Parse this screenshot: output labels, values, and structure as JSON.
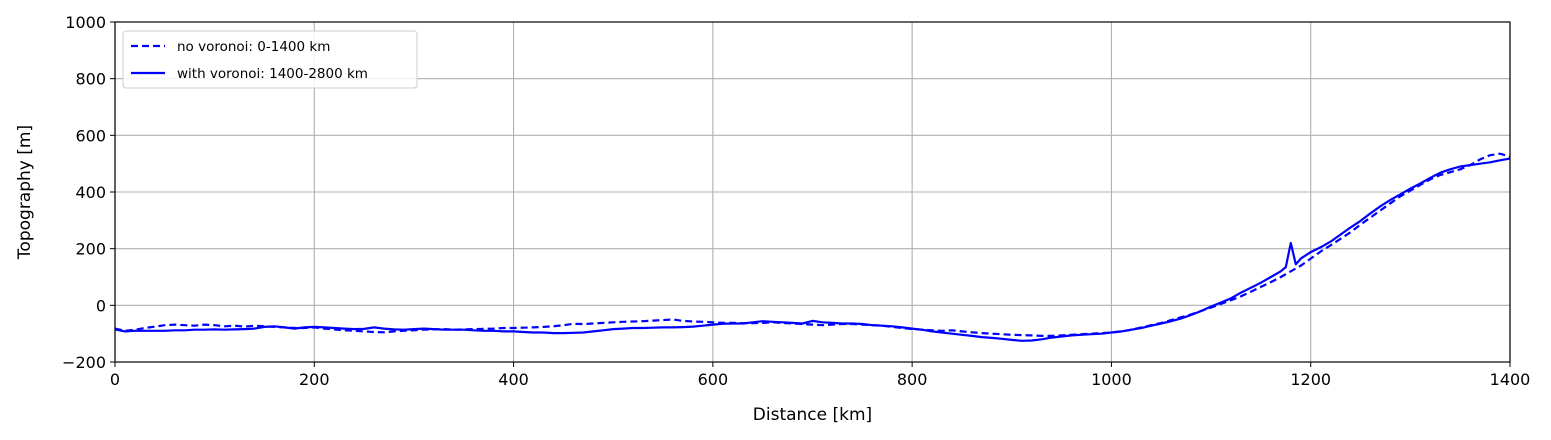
{
  "chart_data": {
    "type": "line",
    "xlabel": "Distance [km]",
    "ylabel": "Topography [m]",
    "xlim": [
      0,
      1400
    ],
    "ylim": [
      -200,
      1000
    ],
    "xticks": [
      0,
      200,
      400,
      600,
      800,
      1000,
      1200,
      1400
    ],
    "yticks": [
      -200,
      0,
      200,
      400,
      600,
      800,
      1000
    ],
    "grid": true,
    "legend_position": "top-left",
    "series": [
      {
        "name": "no voronoi: 0-1400 km",
        "style": "dashed",
        "color": "#0000ff",
        "x": [
          0,
          10,
          20,
          30,
          40,
          50,
          60,
          70,
          80,
          90,
          100,
          110,
          120,
          130,
          140,
          150,
          160,
          170,
          180,
          190,
          200,
          210,
          220,
          230,
          240,
          250,
          260,
          270,
          280,
          290,
          300,
          310,
          320,
          330,
          340,
          350,
          360,
          370,
          380,
          390,
          400,
          410,
          420,
          430,
          440,
          450,
          460,
          470,
          480,
          490,
          500,
          510,
          520,
          530,
          540,
          550,
          560,
          570,
          580,
          590,
          600,
          610,
          620,
          630,
          640,
          650,
          660,
          670,
          680,
          690,
          700,
          710,
          720,
          730,
          740,
          750,
          760,
          770,
          780,
          790,
          800,
          810,
          820,
          830,
          840,
          850,
          860,
          870,
          880,
          890,
          900,
          910,
          920,
          930,
          940,
          950,
          960,
          970,
          980,
          990,
          1000,
          1010,
          1020,
          1030,
          1040,
          1050,
          1060,
          1070,
          1080,
          1090,
          1100,
          1110,
          1120,
          1130,
          1140,
          1150,
          1160,
          1170,
          1180,
          1190,
          1200,
          1210,
          1220,
          1230,
          1240,
          1250,
          1260,
          1270,
          1280,
          1290,
          1300,
          1310,
          1320,
          1330,
          1340,
          1350,
          1360,
          1370,
          1380,
          1390,
          1400
        ],
        "values": [
          -82,
          -90,
          -86,
          -80,
          -75,
          -70,
          -68,
          -70,
          -72,
          -68,
          -70,
          -74,
          -72,
          -75,
          -72,
          -74,
          -76,
          -78,
          -80,
          -80,
          -78,
          -82,
          -85,
          -88,
          -90,
          -92,
          -94,
          -95,
          -92,
          -90,
          -88,
          -86,
          -85,
          -84,
          -86,
          -85,
          -84,
          -83,
          -82,
          -80,
          -80,
          -79,
          -78,
          -76,
          -74,
          -70,
          -65,
          -66,
          -64,
          -62,
          -60,
          -58,
          -57,
          -56,
          -54,
          -52,
          -50,
          -55,
          -57,
          -58,
          -60,
          -62,
          -62,
          -63,
          -63,
          -62,
          -60,
          -62,
          -64,
          -66,
          -68,
          -70,
          -68,
          -66,
          -66,
          -68,
          -70,
          -72,
          -76,
          -80,
          -84,
          -86,
          -88,
          -90,
          -88,
          -92,
          -95,
          -98,
          -100,
          -102,
          -104,
          -105,
          -106,
          -108,
          -108,
          -106,
          -104,
          -102,
          -100,
          -98,
          -96,
          -92,
          -86,
          -78,
          -70,
          -62,
          -52,
          -42,
          -32,
          -20,
          -8,
          5,
          18,
          32,
          48,
          65,
          82,
          100,
          120,
          140,
          165,
          190,
          212,
          235,
          258,
          285,
          310,
          335,
          360,
          385,
          405,
          425,
          445,
          460,
          470,
          480,
          495,
          515,
          530,
          535,
          525
        ]
      },
      {
        "name": "with voronoi: 1400-2800 km",
        "style": "solid",
        "color": "#0000ff",
        "x": [
          0,
          10,
          20,
          30,
          40,
          50,
          60,
          70,
          80,
          90,
          100,
          110,
          120,
          130,
          140,
          150,
          160,
          170,
          180,
          190,
          200,
          210,
          220,
          230,
          240,
          250,
          260,
          270,
          280,
          290,
          300,
          310,
          320,
          330,
          340,
          350,
          360,
          370,
          380,
          390,
          400,
          410,
          420,
          430,
          440,
          450,
          460,
          470,
          480,
          490,
          500,
          510,
          520,
          530,
          540,
          550,
          560,
          570,
          580,
          590,
          600,
          610,
          620,
          630,
          640,
          650,
          660,
          670,
          680,
          690,
          700,
          710,
          720,
          730,
          740,
          750,
          760,
          770,
          780,
          790,
          800,
          810,
          820,
          830,
          840,
          850,
          860,
          870,
          880,
          890,
          900,
          910,
          920,
          930,
          940,
          950,
          960,
          970,
          980,
          990,
          1000,
          1010,
          1020,
          1030,
          1040,
          1050,
          1060,
          1070,
          1080,
          1090,
          1100,
          1110,
          1120,
          1130,
          1140,
          1150,
          1160,
          1170,
          1175,
          1180,
          1185,
          1190,
          1200,
          1210,
          1220,
          1230,
          1240,
          1250,
          1260,
          1270,
          1280,
          1290,
          1300,
          1310,
          1320,
          1330,
          1340,
          1350,
          1360,
          1370,
          1380,
          1390,
          1400
        ],
        "values": [
          -85,
          -92,
          -90,
          -90,
          -90,
          -90,
          -88,
          -88,
          -86,
          -86,
          -85,
          -86,
          -85,
          -84,
          -82,
          -76,
          -74,
          -78,
          -82,
          -78,
          -76,
          -78,
          -80,
          -82,
          -84,
          -83,
          -78,
          -82,
          -85,
          -86,
          -84,
          -82,
          -84,
          -86,
          -86,
          -86,
          -88,
          -90,
          -90,
          -92,
          -92,
          -94,
          -96,
          -96,
          -98,
          -98,
          -97,
          -96,
          -92,
          -88,
          -84,
          -82,
          -80,
          -80,
          -79,
          -78,
          -78,
          -77,
          -75,
          -72,
          -68,
          -65,
          -64,
          -64,
          -60,
          -56,
          -58,
          -60,
          -62,
          -64,
          -55,
          -60,
          -62,
          -64,
          -64,
          -66,
          -70,
          -72,
          -74,
          -78,
          -82,
          -86,
          -92,
          -96,
          -100,
          -104,
          -108,
          -112,
          -115,
          -118,
          -122,
          -125,
          -124,
          -120,
          -114,
          -110,
          -106,
          -104,
          -102,
          -100,
          -96,
          -92,
          -86,
          -80,
          -72,
          -64,
          -56,
          -46,
          -34,
          -20,
          -4,
          10,
          25,
          45,
          62,
          80,
          100,
          120,
          135,
          220,
          145,
          165,
          188,
          205,
          225,
          250,
          275,
          298,
          325,
          350,
          372,
          392,
          412,
          430,
          450,
          468,
          480,
          490,
          495,
          500,
          505,
          512,
          518
        ]
      }
    ]
  }
}
